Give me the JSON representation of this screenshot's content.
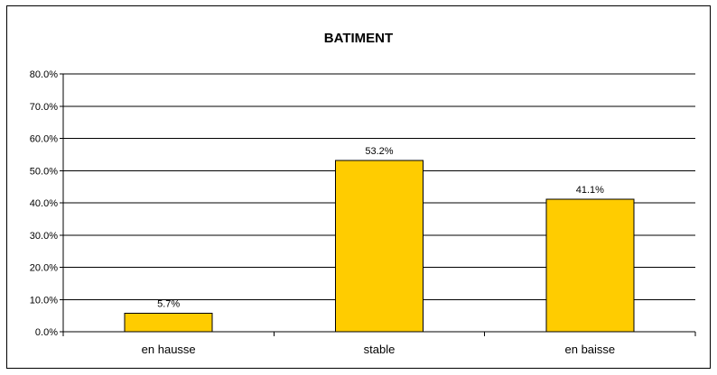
{
  "chart_data": {
    "type": "bar",
    "title": "BATIMENT",
    "categories": [
      "en hausse",
      "stable",
      "en baisse"
    ],
    "values": [
      5.7,
      53.2,
      41.1
    ],
    "value_labels": [
      "5.7%",
      "53.2%",
      "41.1%"
    ],
    "ylim": [
      0,
      80
    ],
    "yticks": [
      0,
      10,
      20,
      30,
      40,
      50,
      60,
      70,
      80
    ],
    "ytick_labels": [
      "0.0%",
      "10.0%",
      "20.0%",
      "30.0%",
      "40.0%",
      "50.0%",
      "60.0%",
      "70.0%",
      "80.0%"
    ],
    "grid": true,
    "legend": "none",
    "bar_color": "#FFCC00",
    "bar_edge_color": "#000000"
  }
}
